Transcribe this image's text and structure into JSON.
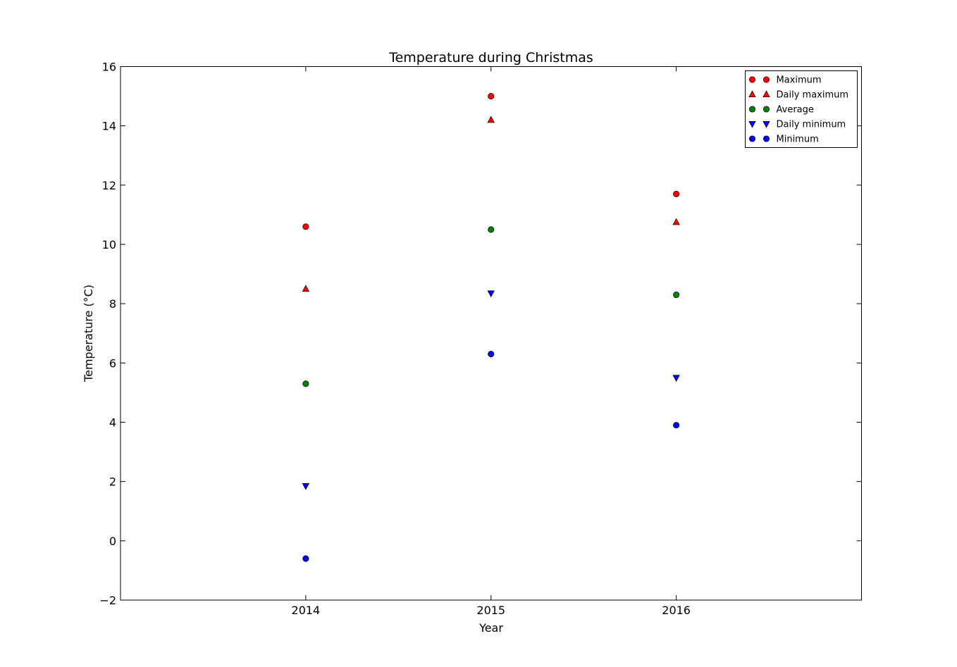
{
  "chart_data": {
    "type": "scatter",
    "title": "Temperature during Christmas",
    "xlabel": "Year",
    "ylabel": "Temperature (°C)",
    "x_ticks": [
      "2014",
      "2015",
      "2016"
    ],
    "y_ticks": [
      "−2",
      "0",
      "2",
      "4",
      "6",
      "8",
      "10",
      "12",
      "14",
      "16"
    ],
    "xlim": [
      2013,
      2017
    ],
    "ylim": [
      -2,
      16
    ],
    "grid": false,
    "legend_position": "top-right",
    "x": [
      2014,
      2015,
      2016
    ],
    "series": [
      {
        "name": "Maximum",
        "marker": "circle",
        "color": "#ff0000",
        "values": [
          10.6,
          15.0,
          11.7
        ]
      },
      {
        "name": "Daily maximum",
        "marker": "triangle-up",
        "color": "#ff0000",
        "values": [
          8.5,
          14.2,
          10.75
        ]
      },
      {
        "name": "Average",
        "marker": "circle",
        "color": "#008000",
        "values": [
          5.3,
          10.5,
          8.3
        ]
      },
      {
        "name": "Daily minimum",
        "marker": "triangle-down",
        "color": "#0000ff",
        "values": [
          1.85,
          8.35,
          5.5
        ]
      },
      {
        "name": "Minimum",
        "marker": "circle",
        "color": "#0000ff",
        "values": [
          -0.6,
          6.3,
          3.9
        ]
      }
    ]
  }
}
